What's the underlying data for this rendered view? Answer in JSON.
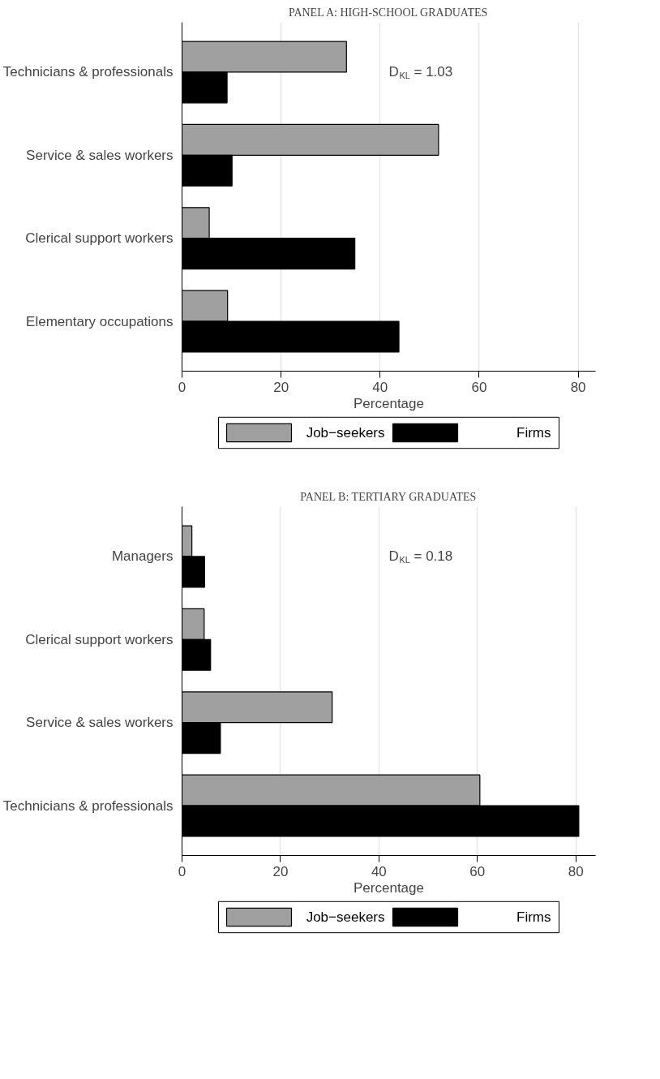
{
  "chart_data": [
    {
      "type": "bar",
      "orientation": "horizontal",
      "title": "PANEL A: HIGH-SCHOOL GRADUATES",
      "xlabel": "Percentage",
      "categories": [
        "Technicians & professionals",
        "Service & sales workers",
        "Clerical support workers",
        "Elementary occupations"
      ],
      "series": [
        {
          "name": "Job−seekers",
          "color": "#a0a0a0",
          "values": [
            33.2,
            51.8,
            5.5,
            9.2
          ]
        },
        {
          "name": "Firms",
          "color": "#000000",
          "values": [
            9.1,
            10.1,
            34.9,
            43.8
          ]
        }
      ],
      "xlim": [
        0,
        83.5
      ],
      "xticks": [
        0,
        20,
        40,
        60,
        80
      ],
      "grid": "x",
      "legend": "bottom",
      "annotations": [
        "D$_{KL}$ = 1.03"
      ]
    },
    {
      "type": "bar",
      "orientation": "horizontal",
      "title": "PANEL B: TERTIARY GRADUATES",
      "xlabel": "Percentage",
      "categories": [
        "Managers",
        "Clerical support workers",
        "Service & sales workers",
        "Technicians & professionals"
      ],
      "series": [
        {
          "name": "Job−seekers",
          "color": "#a0a0a0",
          "values": [
            2.0,
            4.5,
            30.5,
            60.5
          ]
        },
        {
          "name": "Firms",
          "color": "#000000",
          "values": [
            4.6,
            5.8,
            7.8,
            80.6
          ]
        }
      ],
      "xlim": [
        0,
        84
      ],
      "xticks": [
        0,
        20,
        40,
        60,
        80
      ],
      "grid": "x",
      "legend": "bottom",
      "annotations": [
        "D$_{KL}$ = 0.18"
      ]
    }
  ]
}
